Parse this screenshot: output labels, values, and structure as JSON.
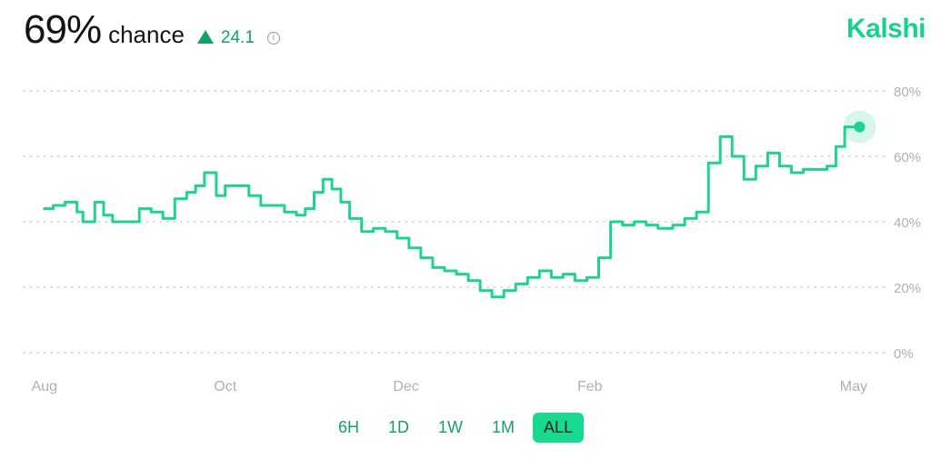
{
  "header": {
    "probability": "69%",
    "chance_label": "chance",
    "change_value": "24.1",
    "info_symbol": "i"
  },
  "brand": "Kalshi",
  "colors": {
    "accent": "#19d18f",
    "line": "#1fd38f",
    "change_text": "#12a26a",
    "grid": "#cfcfcf"
  },
  "range_buttons": [
    {
      "label": "6H",
      "active": false
    },
    {
      "label": "1D",
      "active": false
    },
    {
      "label": "1W",
      "active": false
    },
    {
      "label": "1M",
      "active": false
    },
    {
      "label": "ALL",
      "active": true
    }
  ],
  "chart_data": {
    "type": "line",
    "title": "",
    "xlabel": "",
    "ylabel": "",
    "ylim": [
      0,
      80
    ],
    "y_ticks": [
      "80%",
      "60%",
      "40%",
      "20%",
      "0%"
    ],
    "y_tick_values": [
      80,
      60,
      40,
      20,
      0
    ],
    "x_tick_labels": [
      "Aug",
      "Oct",
      "Dec",
      "Feb",
      "May"
    ],
    "x_tick_dates": [
      "2024-08-01",
      "2024-10-01",
      "2024-12-01",
      "2025-02-01",
      "2025-05-01"
    ],
    "grid": true,
    "grid_style": "dotted",
    "legend": "none",
    "series": [
      {
        "x": [
          "2024-08-01",
          "2024-08-04",
          "2024-08-08",
          "2024-08-12",
          "2024-08-14",
          "2024-08-18",
          "2024-08-21",
          "2024-08-24",
          "2024-08-28",
          "2024-09-02",
          "2024-09-06",
          "2024-09-10",
          "2024-09-14",
          "2024-09-18",
          "2024-09-21",
          "2024-09-24",
          "2024-09-28",
          "2024-10-01",
          "2024-10-05",
          "2024-10-09",
          "2024-10-13",
          "2024-10-17",
          "2024-10-21",
          "2024-10-25",
          "2024-10-28",
          "2024-10-31",
          "2024-11-03",
          "2024-11-06",
          "2024-11-09",
          "2024-11-12",
          "2024-11-16",
          "2024-11-20",
          "2024-11-24",
          "2024-11-28",
          "2024-12-02",
          "2024-12-06",
          "2024-12-10",
          "2024-12-14",
          "2024-12-18",
          "2024-12-22",
          "2024-12-26",
          "2024-12-30",
          "2025-01-03",
          "2025-01-07",
          "2025-01-11",
          "2025-01-15",
          "2025-01-19",
          "2025-01-23",
          "2025-01-27",
          "2025-01-31",
          "2025-02-04",
          "2025-02-08",
          "2025-02-12",
          "2025-02-16",
          "2025-02-20",
          "2025-02-24",
          "2025-03-01",
          "2025-03-05",
          "2025-03-09",
          "2025-03-13",
          "2025-03-17",
          "2025-03-21",
          "2025-03-25",
          "2025-03-29",
          "2025-04-02",
          "2025-04-06",
          "2025-04-10",
          "2025-04-14",
          "2025-04-18",
          "2025-04-22",
          "2025-04-25",
          "2025-04-28",
          "2025-05-01",
          "2025-05-02",
          "2025-05-03"
        ],
        "y": [
          44,
          45,
          46,
          43,
          40,
          46,
          42,
          40,
          40,
          44,
          43,
          41,
          47,
          49,
          51,
          55,
          48,
          51,
          51,
          48,
          45,
          45,
          43,
          42,
          44,
          49,
          53,
          50,
          46,
          41,
          37,
          38,
          37,
          35,
          32,
          29,
          26,
          25,
          24,
          22,
          19,
          17,
          19,
          21,
          23,
          25,
          23,
          24,
          22,
          23,
          29,
          40,
          39,
          40,
          39,
          38,
          39,
          41,
          43,
          58,
          66,
          60,
          53,
          57,
          61,
          57,
          55,
          56,
          56,
          57,
          63,
          69,
          69,
          69,
          69
        ]
      }
    ]
  }
}
